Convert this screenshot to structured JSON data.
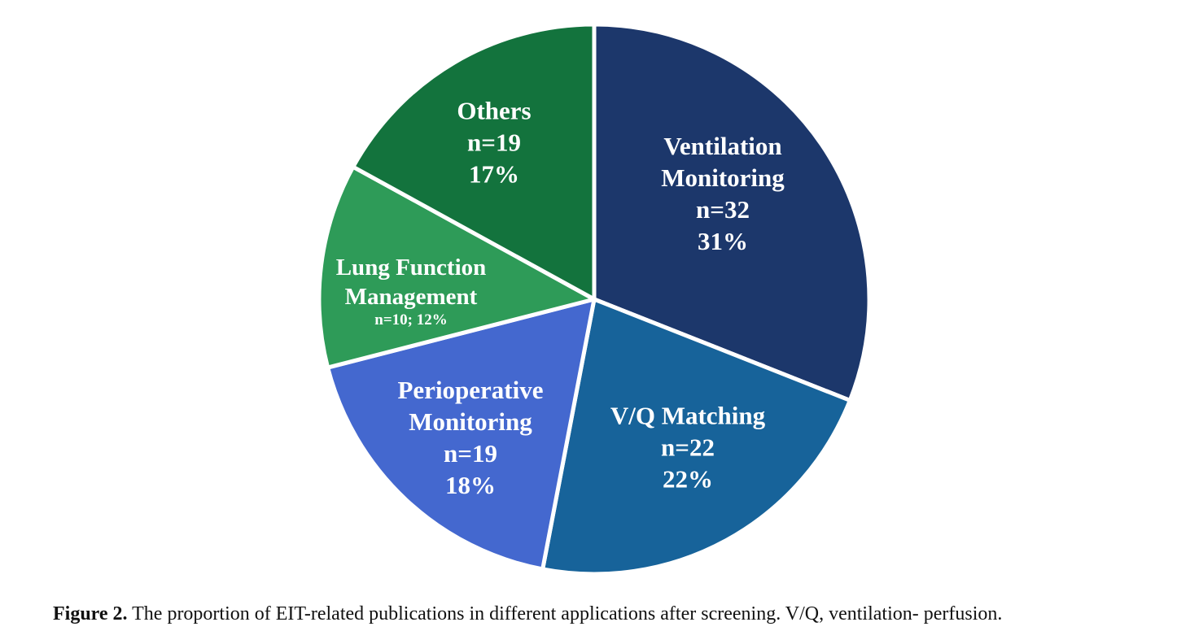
{
  "chart_data": {
    "type": "pie",
    "categories": [
      "Ventilation Monitoring",
      "V/Q Matching",
      "Perioperative Monitoring",
      "Lung Function Management",
      "Others"
    ],
    "values": [
      31,
      22,
      18,
      12,
      17
    ],
    "value_labels": [
      "n=32\n31%",
      "n=22\n22%",
      "n=19\n18%",
      "n=10; 12%",
      "n=19\n17%"
    ],
    "colors": [
      "#1c376b",
      "#17639a",
      "#4468cf",
      "#2e9b58",
      "#13733d"
    ],
    "caption_label": "Figure 2.",
    "caption": "The proportion of EIT-related publications in different applications after screening. V/Q, ventilation- perfusion."
  }
}
